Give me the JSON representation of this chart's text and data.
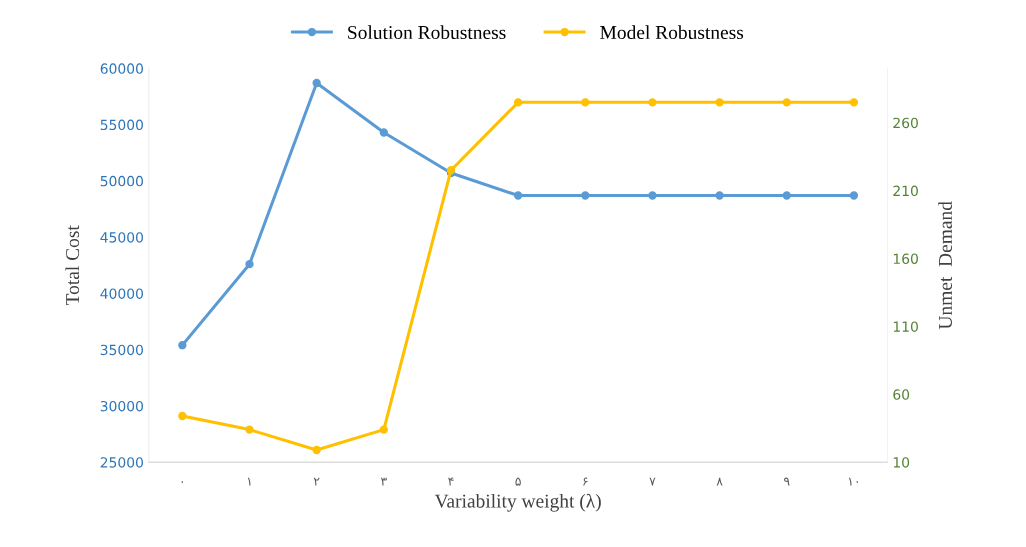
{
  "chart_data": {
    "type": "line",
    "xlabel": "Variability weight (λ)",
    "ylabel": "Total Cost",
    "y2label": "Unmet  Demand",
    "categories": [
      "۰",
      "۱",
      "۲",
      "۳",
      "۴",
      "۵",
      "۶",
      "۷",
      "۸",
      "۹",
      "۱۰"
    ],
    "series": [
      {
        "name": "Solution Robustness",
        "color": "#5b9bd5",
        "values": [
          35400,
          42600,
          58700,
          54300,
          50700,
          48700,
          48700,
          48700,
          48700,
          48700,
          48700
        ]
      },
      {
        "name": "Model Robustness",
        "color": "#ffc000",
        "axis": "y2",
        "values": [
          44,
          34,
          19,
          34,
          225,
          275,
          275,
          275,
          275,
          275,
          275
        ]
      }
    ],
    "ylim": [
      25000,
      60000
    ],
    "yticks": [
      25000,
      30000,
      35000,
      40000,
      45000,
      50000,
      55000,
      60000
    ],
    "y2lim": [
      10,
      300
    ],
    "y2ticks": [
      10,
      60,
      110,
      160,
      210,
      260
    ],
    "legend": "top",
    "grid": false,
    "marker": "circle",
    "line_style": "solid"
  }
}
